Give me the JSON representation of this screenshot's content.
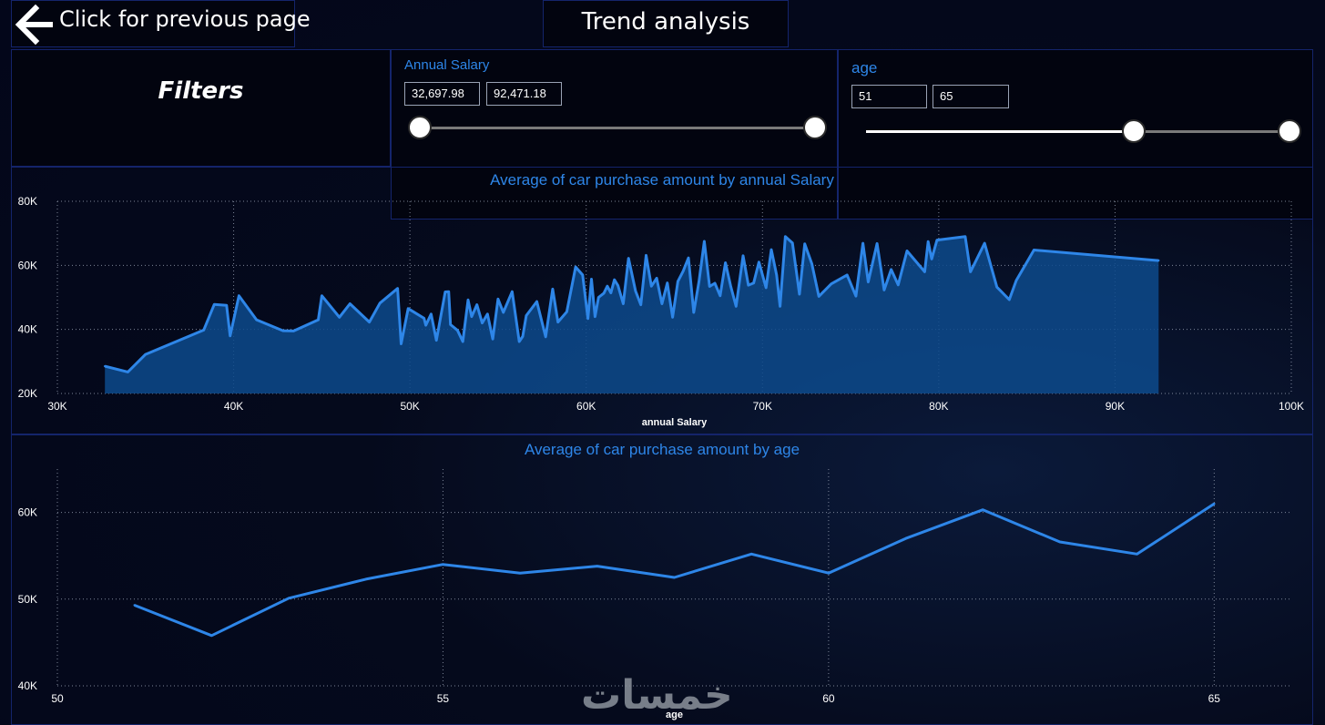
{
  "nav": {
    "back_label": "Click for previous page"
  },
  "page": {
    "title": "Trend analysis"
  },
  "filters": {
    "title": "Filters",
    "salary": {
      "title": "Annual Salary",
      "min": "32,697.98",
      "max": "92,471.18"
    },
    "age": {
      "title": "age",
      "min": "51",
      "max": "65"
    }
  },
  "watermark": "خمسات",
  "colors": {
    "accent": "#2e86e8",
    "area": "#0d4a8c",
    "panel_border": "#14246b"
  },
  "chart_data": [
    {
      "type": "area",
      "title": "Average of car purchase amount by annual Salary",
      "xlabel": "annual Salary",
      "ylabel": "",
      "xlim": [
        30000,
        100000
      ],
      "ylim": [
        20000,
        80000
      ],
      "x_ticks": [
        "30K",
        "40K",
        "50K",
        "60K",
        "70K",
        "80K",
        "90K",
        "100K"
      ],
      "y_ticks": [
        "20K",
        "40K",
        "60K",
        "80K"
      ],
      "grid": true,
      "x": [
        32698,
        34000,
        35000,
        38300,
        38900,
        39600,
        39800,
        40300,
        41300,
        42800,
        43400,
        44800,
        45000,
        46000,
        46600,
        47700,
        48300,
        49300,
        49500,
        49900,
        50200,
        50800,
        50900,
        51200,
        51500,
        52000,
        52200,
        52300,
        52700,
        53000,
        53300,
        53500,
        53800,
        54100,
        54400,
        54700,
        55000,
        55300,
        55800,
        56200,
        56400,
        56600,
        57200,
        57700,
        58100,
        58400,
        58900,
        59400,
        59800,
        60100,
        60300,
        60500,
        60700,
        61000,
        61200,
        61400,
        61600,
        61800,
        62100,
        62400,
        62800,
        63100,
        63400,
        63700,
        64000,
        64300,
        64600,
        64900,
        65200,
        65500,
        65800,
        66100,
        66400,
        66700,
        67000,
        67300,
        67600,
        67900,
        68200,
        68500,
        68900,
        69200,
        69500,
        69800,
        70200,
        70500,
        70800,
        71000,
        71300,
        71700,
        72100,
        72400,
        72800,
        73200,
        73900,
        74800,
        75300,
        75700,
        76000,
        76500,
        76900,
        77300,
        77700,
        78200,
        79200,
        79400,
        79600,
        79900,
        81500,
        81800,
        82600,
        83300,
        84000,
        84400,
        85400,
        92471
      ],
      "y": [
        28500,
        26700,
        32200,
        39800,
        47800,
        47500,
        38000,
        50500,
        43000,
        39600,
        39500,
        43000,
        50500,
        43800,
        48000,
        42300,
        48200,
        52800,
        35500,
        46500,
        45500,
        43500,
        41300,
        44800,
        36600,
        51700,
        51800,
        41500,
        39700,
        36200,
        49200,
        44000,
        47700,
        42000,
        44800,
        37000,
        49500,
        45300,
        51800,
        36200,
        37800,
        44300,
        48700,
        37700,
        52600,
        42300,
        45500,
        59500,
        57000,
        43400,
        55700,
        44000,
        50000,
        51300,
        53500,
        51400,
        55500,
        53700,
        48000,
        62200,
        52000,
        47700,
        63100,
        53500,
        56000,
        48000,
        54500,
        43800,
        55000,
        58200,
        62300,
        45300,
        55000,
        67500,
        53400,
        54400,
        50500,
        60800,
        53500,
        47200,
        63000,
        53800,
        54500,
        61000,
        53000,
        64900,
        57000,
        47200,
        69000,
        67000,
        51000,
        66700,
        60500,
        50300,
        54200,
        57000,
        50400,
        66900,
        54800,
        66800,
        52300,
        58700,
        53900,
        64500,
        58000,
        67400,
        62000,
        67900,
        69000,
        58000,
        66900,
        53200,
        49300,
        55300,
        64800,
        61500
      ]
    },
    {
      "type": "line",
      "title": "Average of car purchase amount by age",
      "xlabel": "age",
      "ylabel": "",
      "xlim": [
        50,
        66
      ],
      "ylim": [
        40000,
        65000
      ],
      "x_ticks": [
        "50",
        "55",
        "60",
        "65"
      ],
      "y_ticks": [
        "40K",
        "50K",
        "60K"
      ],
      "grid": true,
      "x": [
        51,
        52,
        53,
        54,
        55,
        56,
        57,
        58,
        59,
        60,
        61,
        62,
        63,
        64,
        65
      ],
      "y": [
        49300,
        45800,
        50100,
        52300,
        54000,
        53000,
        53800,
        52500,
        55200,
        53000,
        57000,
        60300,
        56600,
        55200,
        61000
      ]
    }
  ]
}
